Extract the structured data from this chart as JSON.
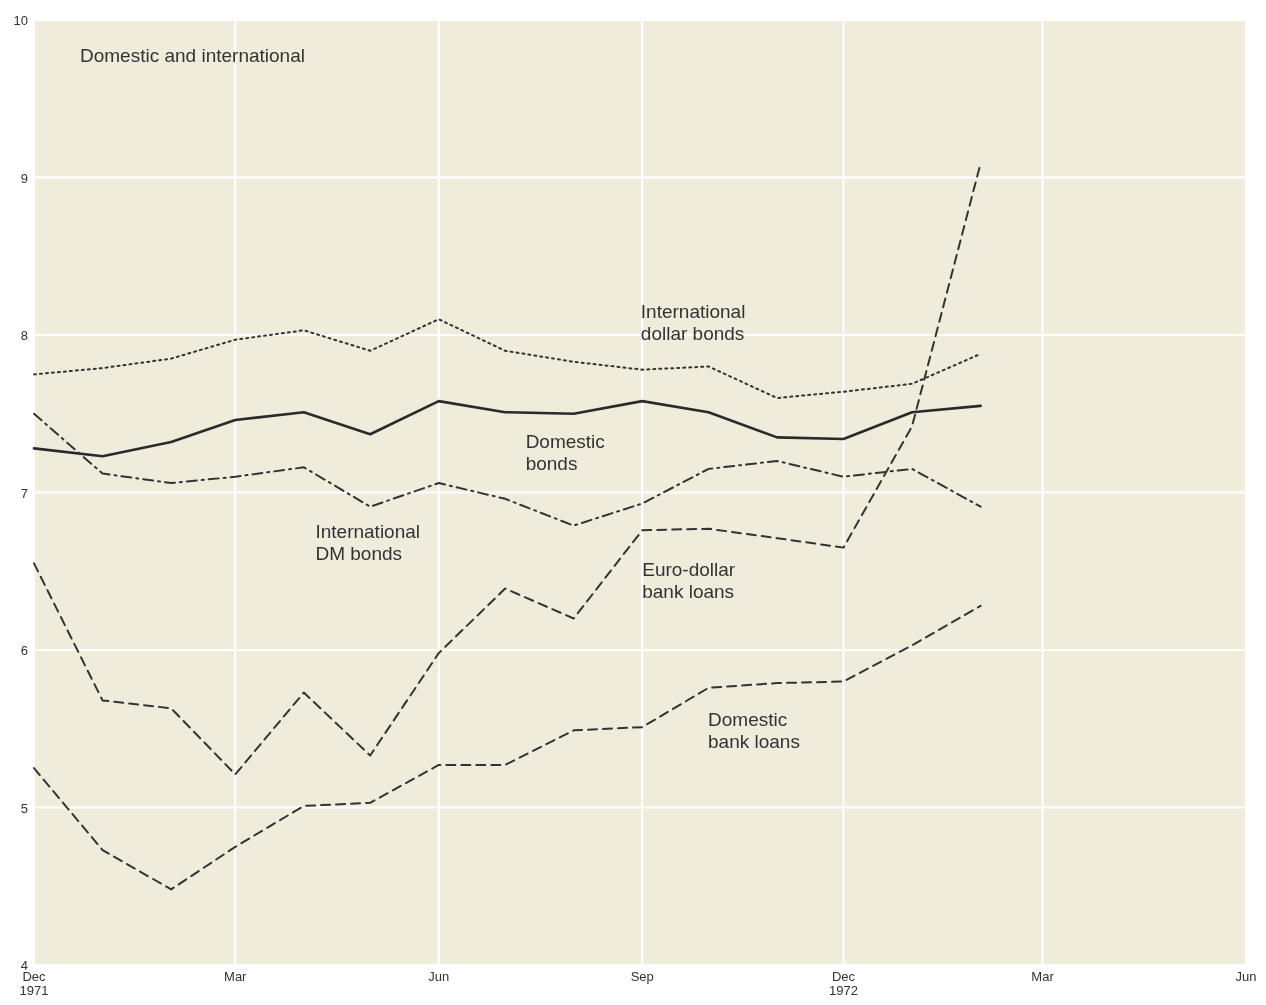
{
  "chart_data": {
    "type": "line",
    "title": "Domestic and international",
    "x": [
      "1971-12",
      "1972-01",
      "1972-02",
      "1972-03",
      "1972-04",
      "1972-05",
      "1972-06",
      "1972-07",
      "1972-08",
      "1972-09",
      "1972-10",
      "1972-11",
      "1972-12",
      "1973-01",
      "1973-02"
    ],
    "series": [
      {
        "name": "International dollar bonds",
        "color": "#333333",
        "line_style": "dotted",
        "values": [
          7.75,
          7.79,
          7.85,
          7.97,
          8.03,
          7.9,
          8.1,
          7.9,
          7.83,
          7.78,
          7.8,
          7.6,
          7.64,
          7.69,
          7.88
        ]
      },
      {
        "name": "Domestic bonds",
        "color": "#2a2a2a",
        "line_style": "solid",
        "values": [
          7.28,
          7.23,
          7.32,
          7.46,
          7.51,
          7.37,
          7.58,
          7.51,
          7.5,
          7.58,
          7.51,
          7.35,
          7.34,
          7.51,
          7.55
        ]
      },
      {
        "name": "International DM bonds",
        "color": "#333333",
        "line_style": "dashdot",
        "values": [
          7.5,
          7.12,
          7.06,
          7.1,
          7.16,
          6.91,
          7.06,
          6.96,
          6.79,
          6.93,
          7.15,
          7.2,
          7.1,
          7.15,
          6.91
        ]
      },
      {
        "name": "Euro-dollar bank loans",
        "color": "#333333",
        "line_style": "dashed",
        "values": [
          6.55,
          5.68,
          5.63,
          5.21,
          5.73,
          5.33,
          5.98,
          6.39,
          6.2,
          6.76,
          6.77,
          6.71,
          6.65,
          7.42,
          9.09
        ]
      },
      {
        "name": "Domestic bank loans",
        "color": "#333333",
        "line_style": "dashed",
        "values": [
          5.25,
          4.73,
          4.48,
          4.75,
          5.01,
          5.03,
          5.27,
          5.27,
          5.49,
          5.51,
          5.76,
          5.79,
          5.8,
          6.03,
          6.28
        ]
      }
    ],
    "xlim": [
      "1971-12",
      "1973-06"
    ],
    "xticks": [
      {
        "value": "1971-12",
        "label": "Dec\n1971"
      },
      {
        "value": "1972-03",
        "label": "Mar"
      },
      {
        "value": "1972-06",
        "label": "Jun"
      },
      {
        "value": "1972-09",
        "label": "Sep"
      },
      {
        "value": "1972-12",
        "label": "Dec\n1972"
      },
      {
        "value": "1973-03",
        "label": "Mar"
      },
      {
        "value": "1973-06",
        "label": "Jun"
      }
    ],
    "ylim": [
      4,
      10
    ],
    "yticks": [
      4,
      5,
      6,
      7,
      8,
      9,
      10
    ],
    "grid": true,
    "marker": "none"
  }
}
